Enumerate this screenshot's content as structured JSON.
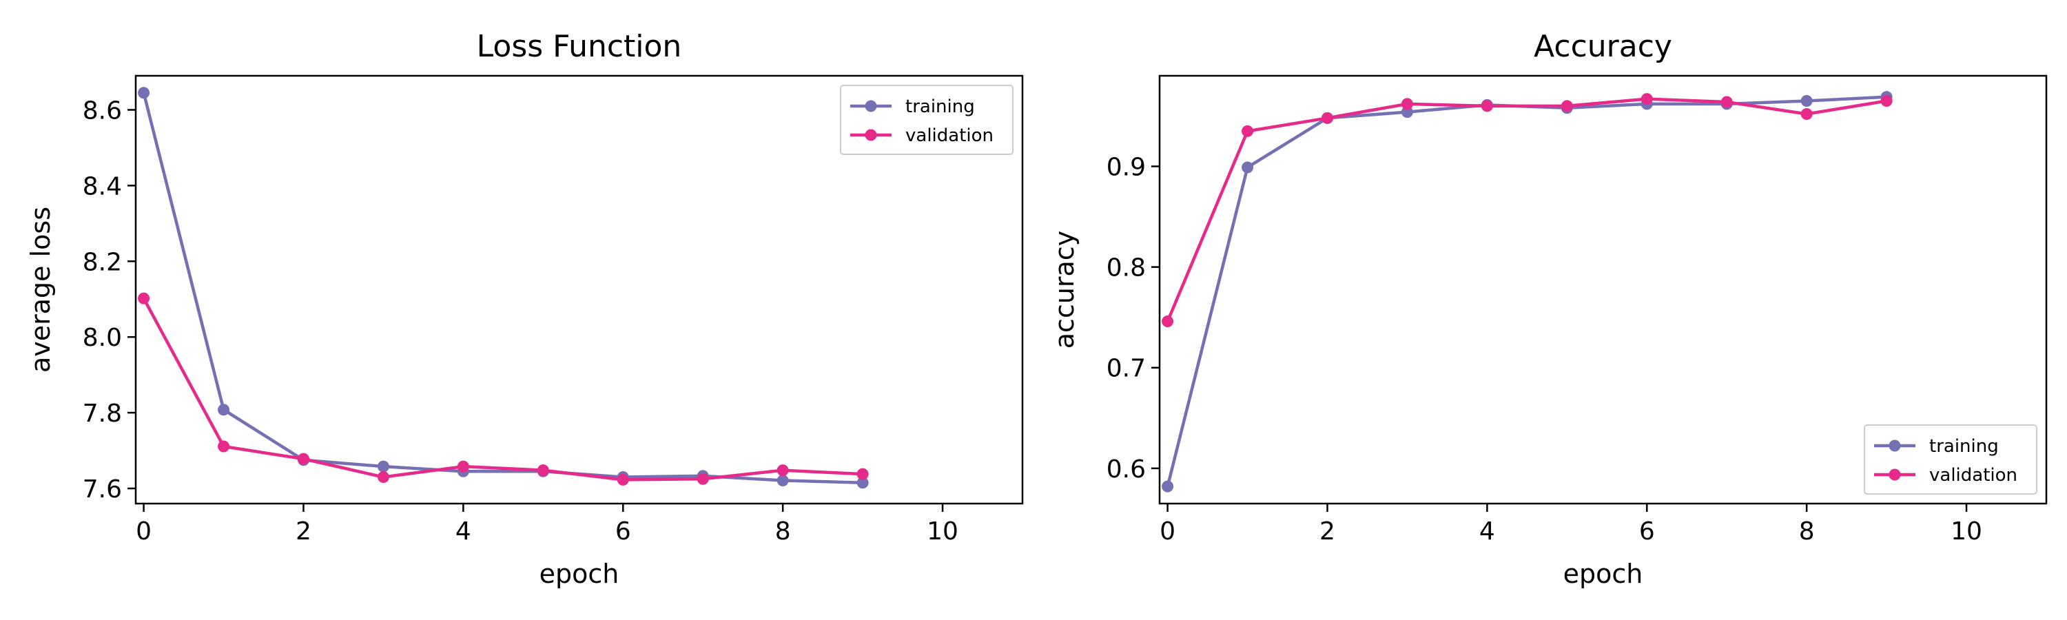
{
  "colors": {
    "training": "#7570b3",
    "validation": "#e7298a"
  },
  "chart_data": [
    {
      "type": "line",
      "title": "Loss Function",
      "xlabel": "epoch",
      "ylabel": "average loss",
      "xlim": [
        -0.1,
        11
      ],
      "ylim": [
        7.56,
        8.69
      ],
      "xticks": [
        0,
        2,
        4,
        6,
        8,
        10
      ],
      "xtick_labels": [
        "0",
        "2",
        "4",
        "6",
        "8",
        "10"
      ],
      "yticks": [
        7.6,
        7.8,
        8.0,
        8.2,
        8.4,
        8.6
      ],
      "ytick_labels": [
        "7.6",
        "7.8",
        "8.0",
        "8.2",
        "8.4",
        "8.6"
      ],
      "legend_position": "top-right",
      "grid": false,
      "x": [
        0,
        1,
        2,
        3,
        4,
        5,
        6,
        7,
        8,
        9
      ],
      "series": [
        {
          "name": "training",
          "values": [
            8.645,
            7.808,
            7.675,
            7.658,
            7.645,
            7.645,
            7.63,
            7.633,
            7.621,
            7.615
          ]
        },
        {
          "name": "validation",
          "values": [
            8.102,
            7.711,
            7.678,
            7.63,
            7.658,
            7.648,
            7.623,
            7.625,
            7.648,
            7.638
          ]
        }
      ]
    },
    {
      "type": "line",
      "title": "Accuracy",
      "xlabel": "epoch",
      "ylabel": "accuracy",
      "xlim": [
        -0.1,
        11
      ],
      "ylim": [
        0.565,
        0.99
      ],
      "xticks": [
        0,
        2,
        4,
        6,
        8,
        10
      ],
      "xtick_labels": [
        "0",
        "2",
        "4",
        "6",
        "8",
        "10"
      ],
      "yticks": [
        0.6,
        0.7,
        0.8,
        0.9
      ],
      "ytick_labels": [
        "0.6",
        "0.7",
        "0.8",
        "0.9"
      ],
      "legend_position": "bottom-right",
      "grid": false,
      "x": [
        0,
        1,
        2,
        3,
        4,
        5,
        6,
        7,
        8,
        9
      ],
      "series": [
        {
          "name": "training",
          "values": [
            0.582,
            0.899,
            0.948,
            0.954,
            0.961,
            0.958,
            0.962,
            0.962,
            0.965,
            0.969
          ]
        },
        {
          "name": "validation",
          "values": [
            0.746,
            0.935,
            0.948,
            0.962,
            0.96,
            0.96,
            0.967,
            0.964,
            0.952,
            0.965
          ]
        }
      ]
    }
  ]
}
